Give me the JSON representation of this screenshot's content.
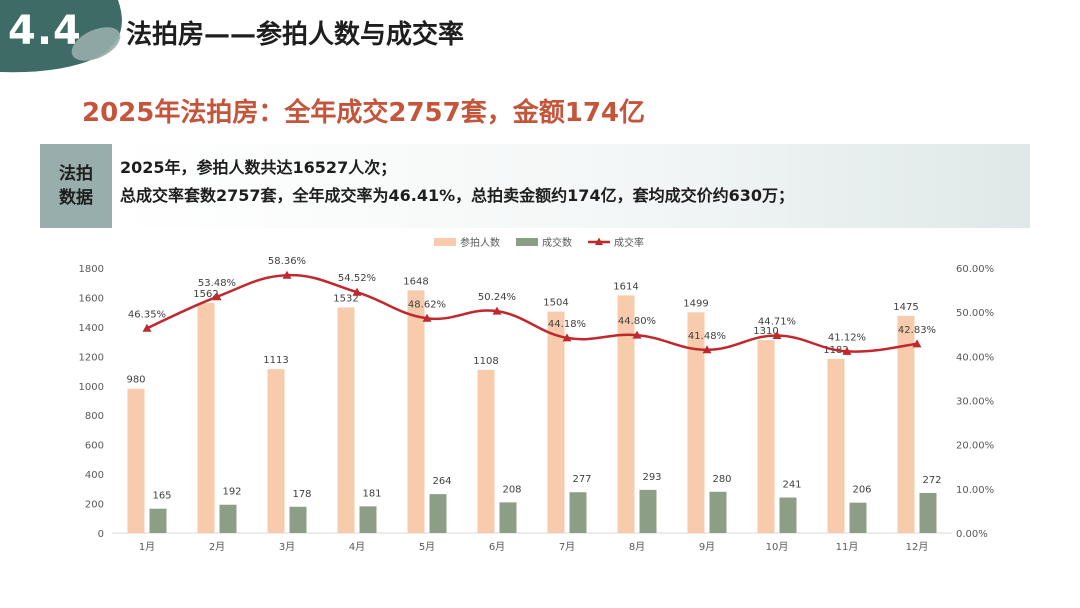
{
  "header": {
    "section_number": "4.4",
    "section_title": "法拍房——参拍人数与成交率"
  },
  "headline": "2025年法拍房：全年成交2757套，金额174亿",
  "info": {
    "label": "法拍数据",
    "lines": [
      "2025年，参拍人数共达16527人次；",
      "总成交率套数2757套，全年成交率为46.41%，总拍卖金额约174亿，套均成交价约630万；"
    ]
  },
  "colors": {
    "teal_dark": "#3f6b66",
    "teal_light": "#97aeac",
    "headline_red": "#c4553a",
    "bar_participants": "#f7cbab",
    "bar_deals": "#8c9f86",
    "line_rate": "#c0282d"
  },
  "chart_data": {
    "type": "bar",
    "categories": [
      "1月",
      "2月",
      "3月",
      "4月",
      "5月",
      "6月",
      "7月",
      "8月",
      "9月",
      "10月",
      "11月",
      "12月"
    ],
    "series": [
      {
        "name": "参拍人数",
        "type": "bar",
        "axis": "left",
        "values": [
          980,
          1562,
          1113,
          1532,
          1648,
          1108,
          1504,
          1614,
          1499,
          1310,
          1182,
          1475
        ]
      },
      {
        "name": "成交数",
        "type": "bar",
        "axis": "left",
        "values": [
          165,
          192,
          178,
          181,
          264,
          208,
          277,
          293,
          280,
          241,
          206,
          272
        ]
      },
      {
        "name": "成交率",
        "type": "line",
        "axis": "right",
        "values": [
          46.35,
          53.48,
          58.36,
          54.52,
          48.62,
          50.24,
          44.18,
          44.8,
          41.48,
          44.71,
          41.12,
          42.83
        ],
        "labels": [
          "46.35%",
          "53.48%",
          "58.36%",
          "54.52%",
          "48.62%",
          "50.24%",
          "44.18%",
          "44.80%",
          "41.48%",
          "44.71%",
          "41.12%",
          "42.83%"
        ]
      }
    ],
    "y_left": {
      "min": 0,
      "max": 1800,
      "ticks": [
        0,
        200,
        400,
        600,
        800,
        1000,
        1200,
        1400,
        1600,
        1800
      ]
    },
    "y_right": {
      "min": 0,
      "max": 60,
      "ticks": [
        "0.00%",
        "10.00%",
        "20.00%",
        "30.00%",
        "40.00%",
        "50.00%",
        "60.00%"
      ]
    },
    "legend_position": "top-center",
    "grid": false
  }
}
